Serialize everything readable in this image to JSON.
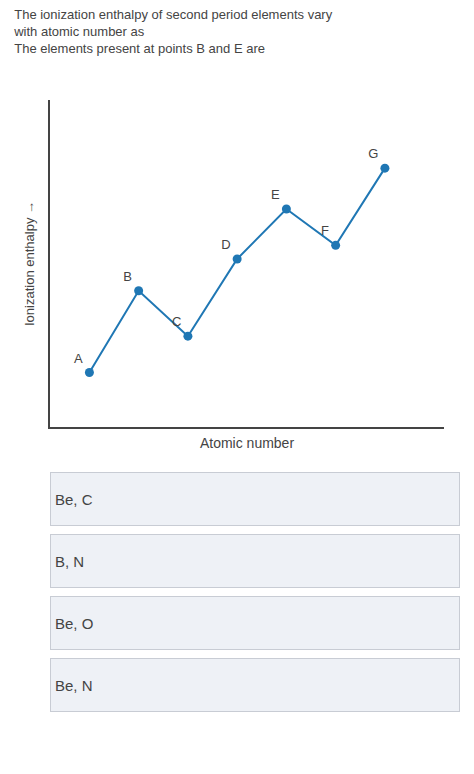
{
  "chart_data": {
    "type": "line",
    "title": "The ionization enthalpy of second period elements vary\nwith atomic number as\nThe elements present at points B and E are",
    "x_label": "Atomic number",
    "y_label": "Ionization enthalpy →",
    "x": [
      1,
      2,
      3,
      4,
      5,
      6,
      7
    ],
    "values": [
      2.0,
      3.8,
      2.8,
      4.5,
      5.6,
      4.8,
      6.5
    ],
    "point_labels": [
      "A",
      "B",
      "C",
      "D",
      "E",
      "F",
      "G"
    ],
    "marker": "circle",
    "xlim": [
      0.2,
      8.2
    ],
    "ylim": [
      0.8,
      8.0
    ],
    "tick_labels": false,
    "grid": false,
    "options": [
      "Be, C",
      "B, N",
      "Be, O",
      "Be, N"
    ]
  }
}
